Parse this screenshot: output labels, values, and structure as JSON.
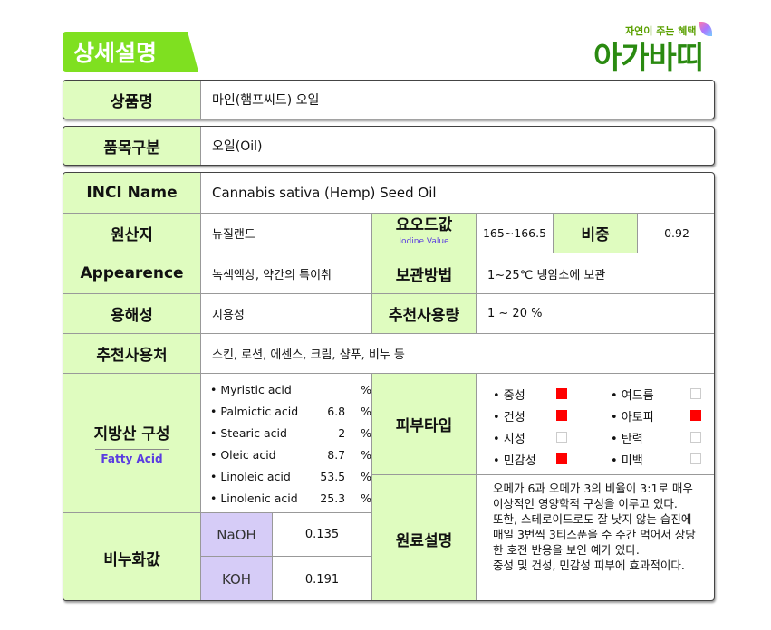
{
  "header": {
    "title": "상세설명",
    "logo_tagline": "자연이 주는 혜택",
    "logo_name": "아가바띠"
  },
  "product": {
    "name_label": "상품명",
    "name": "마인(햄프씨드) 오일",
    "category_label": "품목구분",
    "category": "오일(Oil)"
  },
  "spec": {
    "inci_label": "INCI Name",
    "inci": "Cannabis sativa (Hemp) Seed Oil",
    "origin_label": "원산지",
    "origin": "뉴질랜드",
    "iodine_label": "요오드값",
    "iodine_sub": "Iodine Value",
    "iodine": "165~166.5",
    "gravity_label": "비중",
    "gravity": "0.92",
    "appearance_label": "Appearence",
    "appearance": "녹색액상, 약간의 특이취",
    "storage_label": "보관방법",
    "storage": "1~25℃ 냉암소에 보관",
    "solubility_label": "용해성",
    "solubility": "지용성",
    "dosage_label": "추천사용량",
    "dosage": "1 ~ 20 %",
    "usage_label": "추천사용처",
    "usage": "스킨, 로션, 에센스, 크림, 샴푸, 비누 등",
    "fatty_label": "지방산 구성",
    "fatty_sub": "Fatty Acid",
    "fatty_acids": [
      {
        "name": "• Myristic acid",
        "value": "",
        "unit": "%"
      },
      {
        "name": "• Palmictic acid",
        "value": "6.8",
        "unit": "%"
      },
      {
        "name": "• Stearic acid",
        "value": "2",
        "unit": "%"
      },
      {
        "name": "• Oleic acid",
        "value": "8.7",
        "unit": "%"
      },
      {
        "name": "• Linoleic acid",
        "value": "53.5",
        "unit": "%"
      },
      {
        "name": "• Linolenic acid",
        "value": "25.3",
        "unit": "%"
      }
    ],
    "skin_label": "피부타입",
    "skin_types": [
      {
        "name": "• 중성",
        "checked": true
      },
      {
        "name": "• 여드름",
        "checked": false
      },
      {
        "name": "• 건성",
        "checked": true
      },
      {
        "name": "• 아토피",
        "checked": true
      },
      {
        "name": "• 지성",
        "checked": false
      },
      {
        "name": "• 탄력",
        "checked": false
      },
      {
        "name": "• 민감성",
        "checked": true
      },
      {
        "name": "• 미백",
        "checked": false
      }
    ],
    "sapon_label": "비누화값",
    "naoh_label": "NaOH",
    "naoh": "0.135",
    "koh_label": "KOH",
    "koh": "0.191",
    "desc_label": "원료설명",
    "desc_lines": [
      "오메가 6과 오메가 3의 비율이 3:1로 매우",
      "이상적인 영양학적 구성을 이루고 있다.",
      "또한, 스테로이드로도 잘 낫지 않는 습진에",
      "매일 3번씩 3티스푼을 수 주간 먹어서 상당",
      "한 호전 반응을 보인 예가 있다.",
      "중성 및 건성, 민감성 피부에 효과적이다."
    ]
  },
  "colors": {
    "accent": "#7fe020",
    "label_bg": "#dffcbf",
    "check_on": "#ff0000",
    "lavender": "#d6ccf7"
  }
}
